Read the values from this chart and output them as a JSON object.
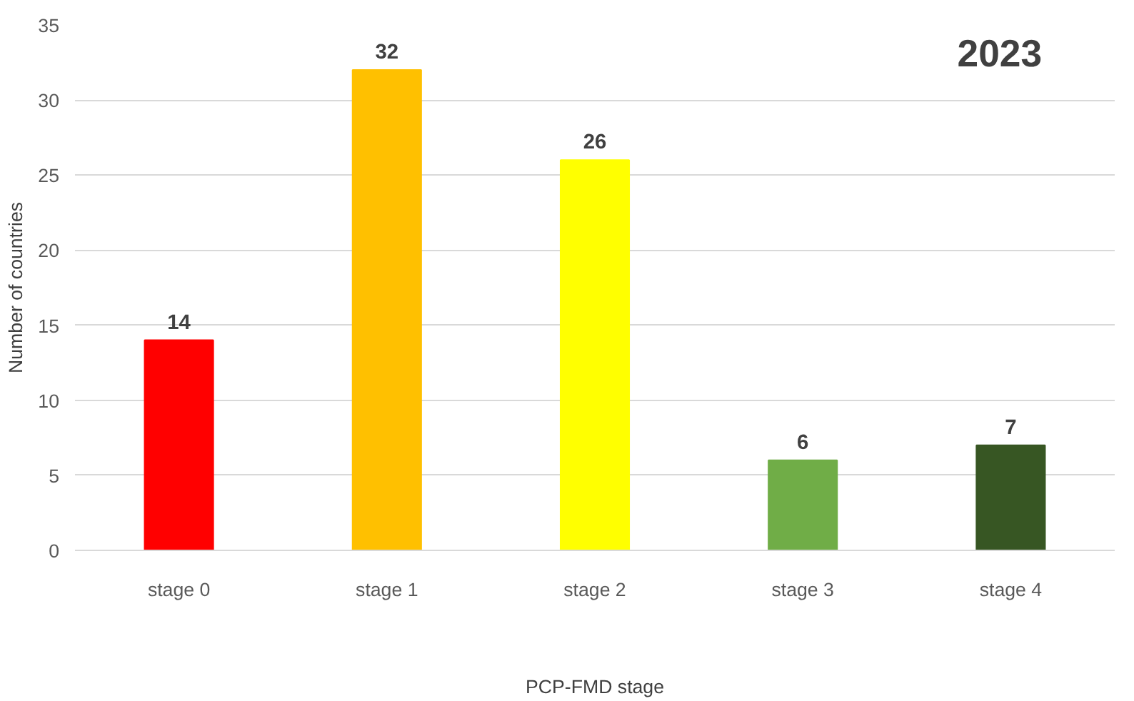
{
  "chart_data": {
    "type": "bar",
    "title": "2023",
    "xlabel": "PCP-FMD stage",
    "ylabel": "Number of countries",
    "categories": [
      "stage 0",
      "stage 1",
      "stage 2",
      "stage 3",
      "stage 4"
    ],
    "values": [
      14,
      32,
      26,
      6,
      7
    ],
    "colors": [
      "#ff0000",
      "#ffc000",
      "#ffff00",
      "#70ad47",
      "#375623"
    ],
    "ylim": [
      0,
      35
    ],
    "yticks": [
      0,
      5,
      10,
      15,
      20,
      25,
      30,
      35
    ],
    "grid": "y",
    "data_labels": true
  }
}
